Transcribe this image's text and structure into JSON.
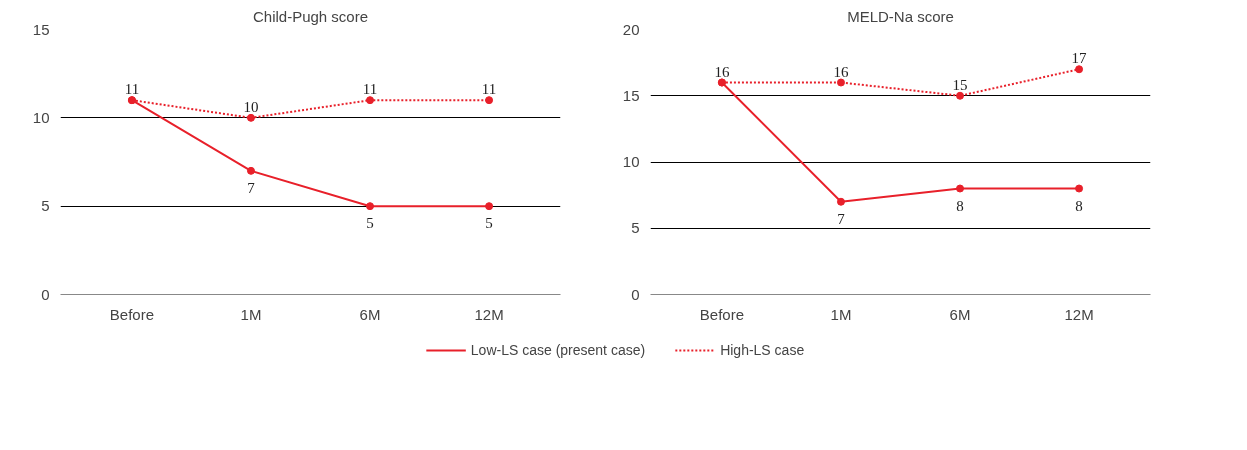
{
  "chart_data": [
    {
      "type": "line",
      "title": "Child-Pugh score",
      "categories": [
        "Before",
        "1M",
        "6M",
        "12M"
      ],
      "ylim": [
        0,
        15
      ],
      "yticks": [
        0,
        5,
        10,
        15
      ],
      "grid": "y",
      "marker": "circle",
      "legend": false,
      "series": [
        {
          "color": "#e8202a",
          "line_style": "solid",
          "values": [
            11,
            7,
            5,
            5
          ],
          "value_labels": [
            "11",
            "7",
            "5",
            "5"
          ]
        },
        {
          "color": "#e8202a",
          "line_style": "dotted",
          "values": [
            11,
            10,
            11,
            11
          ],
          "value_labels": [
            null,
            "10",
            "11",
            "11"
          ]
        }
      ]
    },
    {
      "type": "line",
      "title": "MELD-Na score",
      "categories": [
        "Before",
        "1M",
        "6M",
        "12M"
      ],
      "ylim": [
        0,
        20
      ],
      "yticks": [
        0,
        5,
        10,
        15,
        20
      ],
      "grid": "y",
      "marker": "circle",
      "legend": "bottom",
      "series": [
        {
          "name": "Low-LS case (present case)",
          "color": "#e8202a",
          "line_style": "solid",
          "values": [
            16,
            7,
            8,
            8
          ],
          "value_labels": [
            "16",
            "7",
            "8",
            "8"
          ]
        },
        {
          "name": "High-LS case",
          "color": "#e8202a",
          "line_style": "dotted",
          "values": [
            16,
            16,
            15,
            17
          ],
          "value_labels": [
            null,
            "16",
            "15",
            "17"
          ]
        }
      ]
    }
  ]
}
